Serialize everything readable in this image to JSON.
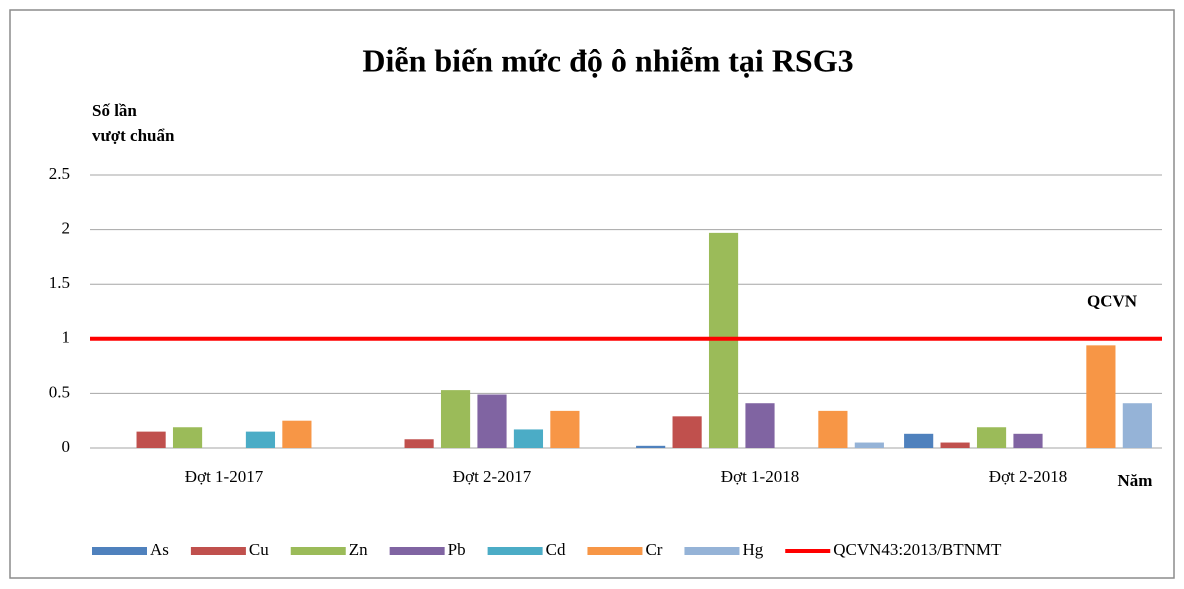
{
  "chart_data": {
    "type": "bar",
    "title": "Diễn biến mức độ ô nhiễm tại RSG3",
    "y_label_lines": [
      "Số lần",
      "vượt chuẩn"
    ],
    "x_label": "Năm",
    "categories": [
      "Đợt 1-2017",
      "Đợt 2-2017",
      "Đợt 1-2018",
      "Đợt 2-2018"
    ],
    "series": [
      {
        "name": "As",
        "color": "#4f81bd",
        "values": [
          0,
          0,
          0.02,
          0.13
        ]
      },
      {
        "name": "Cu",
        "color": "#c0504d",
        "values": [
          0.15,
          0.08,
          0.29,
          0.05
        ]
      },
      {
        "name": "Zn",
        "color": "#9bbb59",
        "values": [
          0.19,
          0.53,
          1.97,
          0.19
        ]
      },
      {
        "name": "Pb",
        "color": "#8064a2",
        "values": [
          0,
          0.49,
          0.41,
          0.13
        ]
      },
      {
        "name": "Cd",
        "color": "#4bacc6",
        "values": [
          0.15,
          0.17,
          0,
          0
        ]
      },
      {
        "name": "Cr",
        "color": "#f79646",
        "values": [
          0.25,
          0.34,
          0.34,
          0.94
        ]
      },
      {
        "name": "Hg",
        "color": "#95b3d7",
        "values": [
          0,
          0,
          0.05,
          0.41
        ]
      }
    ],
    "reference_lines": [
      {
        "name": "QCVN43:2013/BTNMT",
        "value": 1,
        "color": "#ff0000",
        "annotation": "QCVN"
      }
    ],
    "ylim": [
      0,
      2.5
    ],
    "yticks": [
      0,
      0.5,
      1,
      1.5,
      2,
      2.5
    ],
    "grid": true,
    "legend": "bottom"
  }
}
